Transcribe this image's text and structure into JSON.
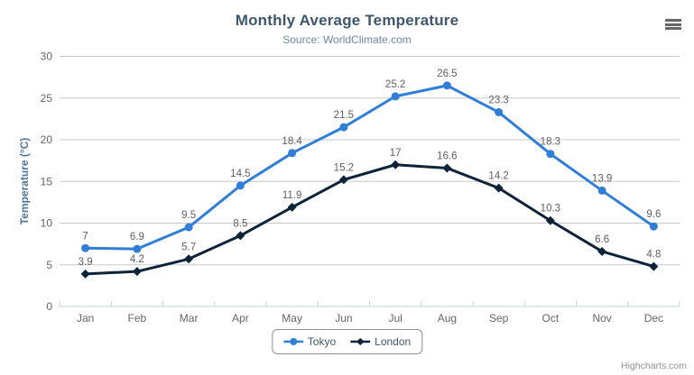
{
  "chart_data": {
    "type": "line",
    "title": "Monthly Average Temperature",
    "subtitle": "Source: WorldClimate.com",
    "categories": [
      "Jan",
      "Feb",
      "Mar",
      "Apr",
      "May",
      "Jun",
      "Jul",
      "Aug",
      "Sep",
      "Oct",
      "Nov",
      "Dec"
    ],
    "series": [
      {
        "name": "Tokyo",
        "color": "#2f7ed8",
        "marker": "circle",
        "values": [
          7,
          6.9,
          9.5,
          14.5,
          18.4,
          21.5,
          25.2,
          26.5,
          23.3,
          18.3,
          13.9,
          9.6
        ]
      },
      {
        "name": "London",
        "color": "#0d233a",
        "marker": "diamond",
        "values": [
          3.9,
          4.2,
          5.7,
          8.5,
          11.9,
          15.2,
          17,
          16.6,
          14.2,
          10.3,
          6.6,
          4.8
        ]
      }
    ],
    "xlabel": "",
    "ylabel": "Temperature (°C)",
    "ylim": [
      0,
      30
    ],
    "yticks": [
      0,
      5,
      10,
      15,
      20,
      25,
      30
    ],
    "grid": true,
    "data_labels": true,
    "legend_position": "bottom"
  },
  "menu": {
    "icon": "hamburger-icon"
  },
  "credits": {
    "text": "Highcharts.com"
  },
  "colors": {
    "background": "#ffffff",
    "title": "#3E576F",
    "subtitle": "#6D869F",
    "axis_title": "#4d759e",
    "axis_label": "#666666",
    "data_label": "#606060",
    "grid": "#C8C8C8",
    "axis_line": "#C0D0E0",
    "legend_border": "#909090",
    "legend_text": "#3E576F",
    "credits": "#909090",
    "menu_icon": "#666666"
  }
}
